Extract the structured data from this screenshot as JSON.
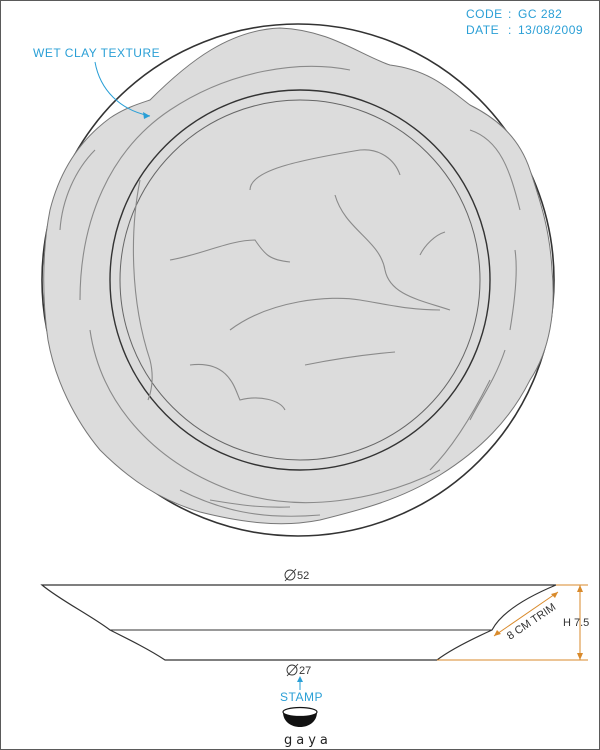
{
  "header": {
    "code_label": "CODE",
    "code_value": "GC 282",
    "date_label": "DATE",
    "date_value": "13/08/2009"
  },
  "annotations": {
    "texture": "WET CLAY TEXTURE",
    "stamp": "STAMP",
    "trim": "8 CM TRIM"
  },
  "dimensions": {
    "top_diameter": "52",
    "base_diameter": "27",
    "height": "H 7.5"
  },
  "brand": {
    "name": "gaya"
  },
  "colors": {
    "accent": "#2a9fd6",
    "clay_fill": "#dcdcdc",
    "dimension_line": "#d98a2b",
    "outline": "#333333"
  }
}
